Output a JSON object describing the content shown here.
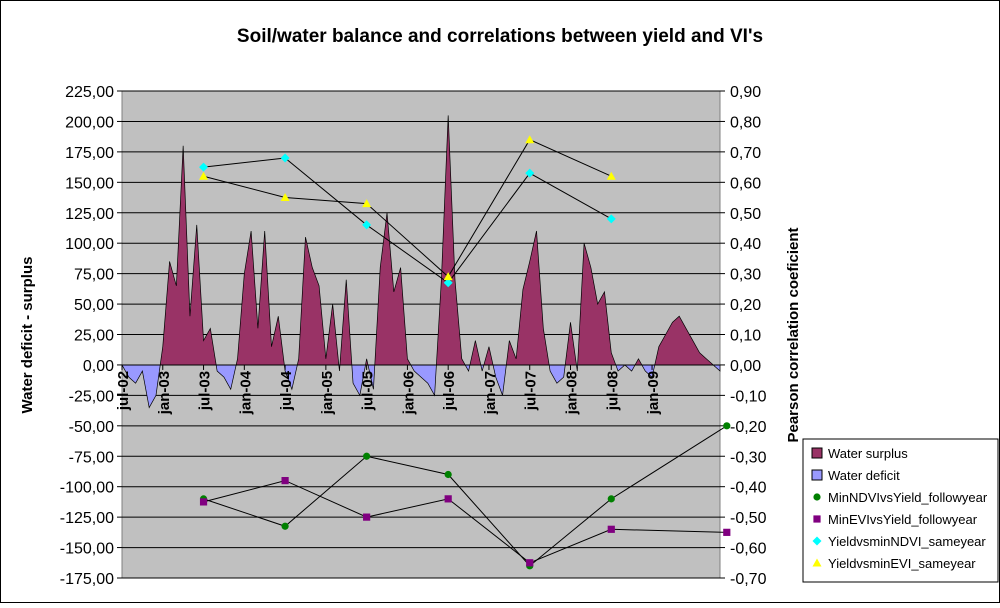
{
  "chart_data": {
    "type": "area+scatter-line",
    "title": "Soil/water balance and correlations between yield and VI's",
    "ylabel_left": "Water deficit - surplus",
    "ylabel_right": "Pearson correlation coeficient",
    "ylim_left": [
      -175,
      225
    ],
    "yticks_left": [
      "225,00",
      "200,00",
      "175,00",
      "150,00",
      "125,00",
      "100,00",
      "75,00",
      "50,00",
      "25,00",
      "0,00",
      "-25,00",
      "-50,00",
      "-75,00",
      "-100,00",
      "-125,00",
      "-150,00",
      "-175,00"
    ],
    "ylim_right": [
      -0.7,
      0.9
    ],
    "yticks_right": [
      "0,90",
      "0,80",
      "0,70",
      "0,60",
      "0,50",
      "0,40",
      "0,30",
      "0,20",
      "0,10",
      "0,00",
      "-0,10",
      "-0,20",
      "-0,30",
      "-0,40",
      "-0,50",
      "-0,60",
      "-0,70"
    ],
    "months_total": 89,
    "month_start_label": "jul-02",
    "x_tick_labels": [
      {
        "label": "jul-02",
        "month": 0
      },
      {
        "label": "jan-03",
        "month": 6
      },
      {
        "label": "jul-03",
        "month": 12
      },
      {
        "label": "jan-04",
        "month": 18
      },
      {
        "label": "jul-04",
        "month": 24
      },
      {
        "label": "jan-05",
        "month": 30
      },
      {
        "label": "jul-05",
        "month": 36
      },
      {
        "label": "jan-06",
        "month": 42
      },
      {
        "label": "jul-06",
        "month": 48
      },
      {
        "label": "jan-07",
        "month": 54
      },
      {
        "label": "jul-07",
        "month": 60
      },
      {
        "label": "jan-08",
        "month": 66
      },
      {
        "label": "jul-08",
        "month": 72
      },
      {
        "label": "jan-09",
        "month": 78
      }
    ],
    "water_balance": {
      "positive_name": "Water surplus",
      "negative_name": "Water deficit",
      "positive_color": "#993366",
      "negative_color": "#9999ff",
      "values": [
        0,
        -10,
        -15,
        -5,
        -35,
        -25,
        15,
        85,
        65,
        180,
        40,
        115,
        20,
        30,
        -5,
        -10,
        -20,
        5,
        75,
        110,
        30,
        110,
        15,
        40,
        -5,
        -20,
        5,
        105,
        80,
        65,
        5,
        50,
        -5,
        70,
        -15,
        -25,
        5,
        -20,
        80,
        125,
        60,
        80,
        5,
        -5,
        -10,
        -15,
        -25,
        70,
        205,
        70,
        5,
        -5,
        20,
        -5,
        15,
        -10,
        -25,
        20,
        5,
        62,
        85,
        110,
        30,
        -5,
        -15,
        -10,
        35,
        -5,
        100,
        80,
        50,
        60,
        10,
        -5,
        0,
        -5,
        5,
        -5,
        -10,
        15,
        25,
        35,
        40,
        30,
        20,
        10,
        5,
        0,
        -5
      ]
    },
    "x_correlation": [
      12,
      24,
      36,
      48,
      60,
      72,
      89
    ],
    "series": [
      {
        "name": "MinNDVIvsYield_followyear",
        "color": "#008000",
        "marker": "circle",
        "x": [
          12,
          24,
          36,
          48,
          60,
          72,
          89
        ],
        "values": [
          -0.44,
          -0.53,
          -0.3,
          -0.36,
          -0.66,
          -0.44,
          -0.2
        ]
      },
      {
        "name": "MinEVIvsYield_followyear",
        "color": "#800080",
        "marker": "square",
        "x": [
          12,
          24,
          36,
          48,
          60,
          72,
          89
        ],
        "values": [
          -0.45,
          -0.38,
          -0.5,
          -0.44,
          -0.65,
          -0.54,
          -0.55
        ]
      },
      {
        "name": "YieldvsminNDVI_sameyear",
        "color": "#00ffff",
        "marker": "diamond",
        "x": [
          12,
          24,
          36,
          48,
          60,
          72
        ],
        "values": [
          0.65,
          0.68,
          0.46,
          0.27,
          0.63,
          0.48
        ]
      },
      {
        "name": "YieldvsminEVI_sameyear",
        "color": "#ffff00",
        "marker": "triangle",
        "x": [
          12,
          24,
          36,
          48,
          60,
          72
        ],
        "values": [
          0.62,
          0.55,
          0.53,
          0.29,
          0.74,
          0.62
        ]
      }
    ],
    "legend_position": "right",
    "grid": true
  }
}
